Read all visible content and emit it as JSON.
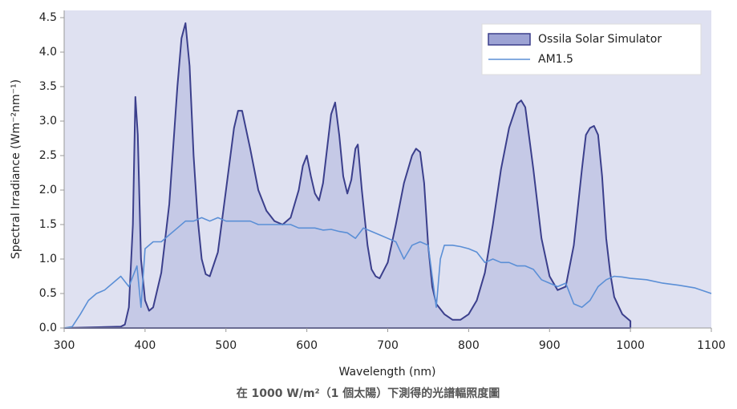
{
  "chart_data": {
    "type": "area-line",
    "xlabel": "Wavelength (nm)",
    "ylabel": "Spectral Irradiance (Wm⁻²nm⁻¹)",
    "caption": "在 1000 W/m²（1 個太陽）下測得的光譜輻照度圖",
    "xlim": [
      300,
      1100
    ],
    "xticks": [
      300,
      400,
      500,
      600,
      700,
      800,
      900,
      1000,
      1100
    ],
    "ylim": [
      0,
      4.5
    ],
    "yticks": [
      {
        "value": 0,
        "label": "0.0"
      },
      0.5,
      {
        "value": 1,
        "label": "1.0"
      },
      1.5,
      {
        "value": 2,
        "label": "2.0"
      },
      2.5,
      {
        "value": 3,
        "label": "3.0"
      },
      3.5,
      {
        "value": 4,
        "label": "4.0"
      },
      4.5
    ],
    "legend": "upper right",
    "series": [
      {
        "name": "Ossila Solar Simulator",
        "kind": "area",
        "color": "#3b3f8c",
        "fill": "#c5c9e6",
        "legend_fill": "#9da3d4",
        "x": [
          300,
          370,
          375,
          380,
          385,
          388,
          391,
          395,
          400,
          405,
          410,
          420,
          430,
          440,
          445,
          450,
          455,
          460,
          465,
          470,
          475,
          480,
          490,
          500,
          510,
          515,
          520,
          530,
          540,
          550,
          560,
          570,
          580,
          590,
          595,
          600,
          605,
          610,
          615,
          620,
          630,
          635,
          640,
          645,
          650,
          655,
          660,
          663,
          668,
          675,
          680,
          685,
          690,
          700,
          710,
          720,
          730,
          735,
          740,
          745,
          750,
          755,
          760,
          770,
          780,
          790,
          800,
          810,
          820,
          830,
          840,
          850,
          860,
          865,
          870,
          880,
          890,
          900,
          910,
          920,
          930,
          940,
          945,
          950,
          955,
          960,
          965,
          970,
          975,
          980,
          990,
          1000
        ],
        "values": [
          0,
          0.02,
          0.05,
          0.3,
          1.5,
          3.35,
          2.8,
          1.0,
          0.4,
          0.25,
          0.3,
          0.8,
          1.8,
          3.5,
          4.2,
          4.42,
          3.8,
          2.5,
          1.6,
          1.0,
          0.78,
          0.75,
          1.1,
          2.0,
          2.9,
          3.15,
          3.15,
          2.6,
          2.0,
          1.7,
          1.55,
          1.5,
          1.6,
          2.0,
          2.35,
          2.5,
          2.2,
          1.95,
          1.85,
          2.1,
          3.1,
          3.27,
          2.8,
          2.2,
          1.95,
          2.15,
          2.6,
          2.66,
          2.0,
          1.2,
          0.85,
          0.75,
          0.72,
          0.95,
          1.5,
          2.1,
          2.5,
          2.6,
          2.55,
          2.1,
          1.2,
          0.6,
          0.35,
          0.2,
          0.12,
          0.12,
          0.2,
          0.4,
          0.8,
          1.5,
          2.3,
          2.9,
          3.25,
          3.3,
          3.2,
          2.3,
          1.3,
          0.75,
          0.55,
          0.6,
          1.2,
          2.3,
          2.8,
          2.9,
          2.93,
          2.8,
          2.2,
          1.3,
          0.8,
          0.45,
          0.2,
          0.1
        ]
      },
      {
        "name": "AM1.5",
        "kind": "line",
        "color": "#5b8fd6",
        "x": [
          300,
          310,
          320,
          330,
          340,
          350,
          360,
          370,
          380,
          390,
          395,
          400,
          410,
          420,
          430,
          440,
          450,
          460,
          470,
          480,
          490,
          500,
          510,
          520,
          530,
          540,
          550,
          560,
          570,
          580,
          590,
          600,
          610,
          620,
          630,
          640,
          650,
          660,
          670,
          680,
          690,
          700,
          710,
          720,
          730,
          740,
          750,
          760,
          765,
          770,
          780,
          790,
          800,
          810,
          820,
          830,
          840,
          850,
          860,
          870,
          880,
          890,
          900,
          910,
          920,
          930,
          940,
          950,
          960,
          970,
          980,
          990,
          1000,
          1020,
          1040,
          1060,
          1080,
          1100
        ],
        "values": [
          0,
          0.02,
          0.2,
          0.4,
          0.5,
          0.55,
          0.65,
          0.75,
          0.6,
          0.9,
          0.3,
          1.15,
          1.25,
          1.25,
          1.35,
          1.45,
          1.55,
          1.55,
          1.6,
          1.55,
          1.6,
          1.55,
          1.55,
          1.55,
          1.55,
          1.5,
          1.5,
          1.5,
          1.5,
          1.5,
          1.45,
          1.45,
          1.45,
          1.42,
          1.43,
          1.4,
          1.38,
          1.3,
          1.45,
          1.4,
          1.35,
          1.3,
          1.25,
          1.0,
          1.2,
          1.25,
          1.2,
          0.3,
          1.0,
          1.2,
          1.2,
          1.18,
          1.15,
          1.1,
          0.95,
          1.0,
          0.95,
          0.95,
          0.9,
          0.9,
          0.85,
          0.7,
          0.65,
          0.6,
          0.65,
          0.35,
          0.3,
          0.4,
          0.6,
          0.7,
          0.75,
          0.74,
          0.72,
          0.7,
          0.65,
          0.62,
          0.58,
          0.5
        ]
      }
    ]
  }
}
